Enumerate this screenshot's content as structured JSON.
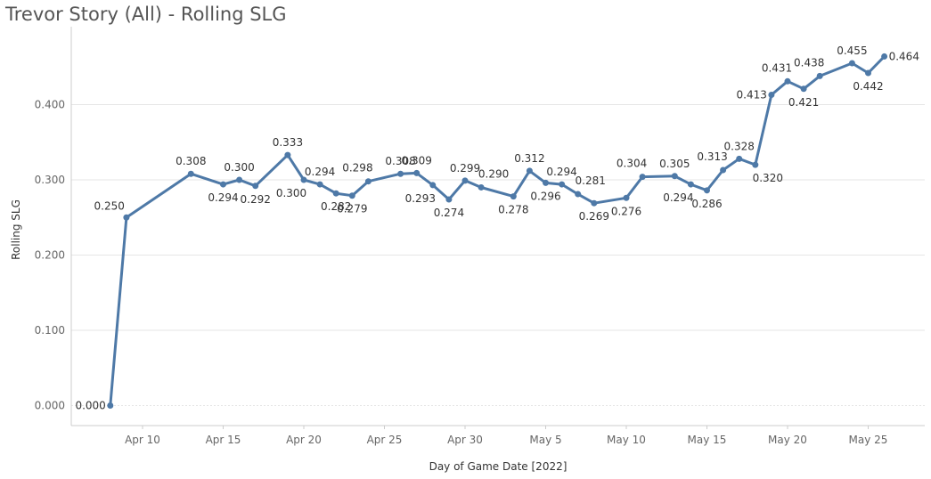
{
  "title": "Trevor Story (All) - Rolling SLG",
  "colors": {
    "line": "#4e79a7",
    "grid": "#e6e6e6",
    "axis": "#cccccc"
  },
  "chart_data": {
    "type": "line",
    "title": "Trevor Story (All) - Rolling SLG",
    "xlabel": "Day of Game Date [2022]",
    "ylabel": "Rolling SLG",
    "ylim": [
      0,
      0.47
    ],
    "yticks": [
      0.0,
      0.1,
      0.2,
      0.3,
      0.4
    ],
    "ytick_labels": [
      "0.000",
      "0.100",
      "0.200",
      "0.300",
      "0.400"
    ],
    "xtick_labels": [
      "Apr 10",
      "Apr 15",
      "Apr 20",
      "Apr 25",
      "Apr 30",
      "May 5",
      "May 10",
      "May 15",
      "May 20",
      "May 25"
    ],
    "xticks": [
      "2022-04-10",
      "2022-04-15",
      "2022-04-20",
      "2022-04-25",
      "2022-04-30",
      "2022-05-05",
      "2022-05-10",
      "2022-05-15",
      "2022-05-20",
      "2022-05-25"
    ],
    "grid": true,
    "series": [
      {
        "points": [
          {
            "x": "2022-04-08",
            "y": 0.0,
            "label": "0.000",
            "pos": "left"
          },
          {
            "x": "2022-04-09",
            "y": 0.25,
            "label": "0.250",
            "pos": "leftabove"
          },
          {
            "x": "2022-04-13",
            "y": 0.308,
            "label": "0.308",
            "pos": "above"
          },
          {
            "x": "2022-04-15",
            "y": 0.294,
            "label": "0.294",
            "pos": "below"
          },
          {
            "x": "2022-04-16",
            "y": 0.3,
            "label": "0.300",
            "pos": "above"
          },
          {
            "x": "2022-04-17",
            "y": 0.292,
            "label": "0.292",
            "pos": "below"
          },
          {
            "x": "2022-04-19",
            "y": 0.333,
            "label": "0.333",
            "pos": "above"
          },
          {
            "x": "2022-04-20",
            "y": 0.3,
            "label": "0.300",
            "pos": "belowleft"
          },
          {
            "x": "2022-04-21",
            "y": 0.294,
            "label": "0.294",
            "pos": "above"
          },
          {
            "x": "2022-04-22",
            "y": 0.282,
            "label": "0.282",
            "pos": "below"
          },
          {
            "x": "2022-04-23",
            "y": 0.279,
            "label": "0.279",
            "pos": "below"
          },
          {
            "x": "2022-04-24",
            "y": 0.298,
            "label": "0.298",
            "pos": "aboveleft"
          },
          {
            "x": "2022-04-26",
            "y": 0.308,
            "label": "0.308",
            "pos": "above"
          },
          {
            "x": "2022-04-27",
            "y": 0.309,
            "label": "0.309",
            "pos": "above"
          },
          {
            "x": "2022-04-28",
            "y": 0.293,
            "label": "0.293",
            "pos": "belowleft"
          },
          {
            "x": "2022-04-29",
            "y": 0.274,
            "label": "0.274",
            "pos": "below"
          },
          {
            "x": "2022-04-30",
            "y": 0.299,
            "label": "0.299",
            "pos": "above"
          },
          {
            "x": "2022-05-01",
            "y": 0.29,
            "label": "0.290",
            "pos": "aboveright"
          },
          {
            "x": "2022-05-03",
            "y": 0.278,
            "label": "0.278",
            "pos": "below"
          },
          {
            "x": "2022-05-04",
            "y": 0.312,
            "label": "0.312",
            "pos": "above"
          },
          {
            "x": "2022-05-05",
            "y": 0.296,
            "label": "0.296",
            "pos": "below"
          },
          {
            "x": "2022-05-06",
            "y": 0.294,
            "label": "0.294",
            "pos": "above"
          },
          {
            "x": "2022-05-07",
            "y": 0.281,
            "label": "0.281",
            "pos": "aboveright"
          },
          {
            "x": "2022-05-08",
            "y": 0.269,
            "label": "0.269",
            "pos": "below"
          },
          {
            "x": "2022-05-10",
            "y": 0.276,
            "label": "0.276",
            "pos": "below"
          },
          {
            "x": "2022-05-11",
            "y": 0.304,
            "label": "0.304",
            "pos": "aboveleft"
          },
          {
            "x": "2022-05-13",
            "y": 0.305,
            "label": "0.305",
            "pos": "above"
          },
          {
            "x": "2022-05-14",
            "y": 0.294,
            "label": "0.294",
            "pos": "belowleft"
          },
          {
            "x": "2022-05-15",
            "y": 0.286,
            "label": "0.286",
            "pos": "below"
          },
          {
            "x": "2022-05-16",
            "y": 0.313,
            "label": "0.313",
            "pos": "aboveleft"
          },
          {
            "x": "2022-05-17",
            "y": 0.328,
            "label": "0.328",
            "pos": "above"
          },
          {
            "x": "2022-05-18",
            "y": 0.32,
            "label": "0.320",
            "pos": "belowright"
          },
          {
            "x": "2022-05-19",
            "y": 0.413,
            "label": "0.413",
            "pos": "left"
          },
          {
            "x": "2022-05-20",
            "y": 0.431,
            "label": "0.431",
            "pos": "aboveleft"
          },
          {
            "x": "2022-05-21",
            "y": 0.421,
            "label": "0.421",
            "pos": "below"
          },
          {
            "x": "2022-05-22",
            "y": 0.438,
            "label": "0.438",
            "pos": "aboveleft"
          },
          {
            "x": "2022-05-24",
            "y": 0.455,
            "label": "0.455",
            "pos": "above"
          },
          {
            "x": "2022-05-25",
            "y": 0.442,
            "label": "0.442",
            "pos": "below"
          },
          {
            "x": "2022-05-26",
            "y": 0.464,
            "label": "0.464",
            "pos": "right"
          }
        ]
      }
    ]
  }
}
